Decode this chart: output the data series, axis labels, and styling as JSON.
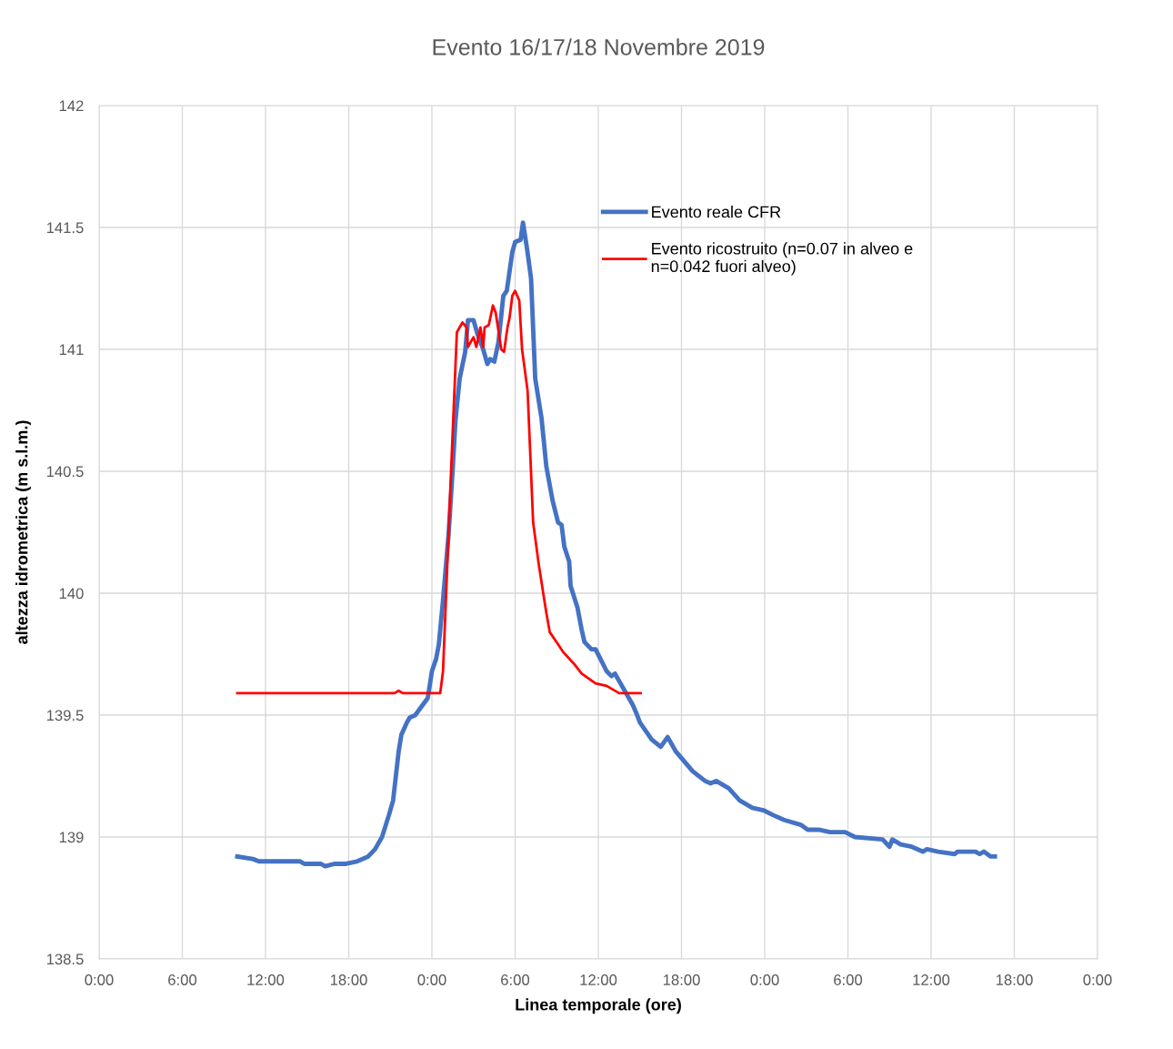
{
  "chart_data": {
    "type": "line",
    "title": "Evento 16/17/18 Novembre 2019",
    "xlabel": "Linea temporale (ore)",
    "ylabel": "altezza idrometrica (m s.l.m.)",
    "xlim": [
      "2019-11-16T00:00",
      "2019-11-19T00:00"
    ],
    "xticks": [
      {
        "value": "2019-11-16T00:00",
        "label": "0:00"
      },
      {
        "value": "2019-11-16T06:00",
        "label": "6:00"
      },
      {
        "value": "2019-11-16T12:00",
        "label": "12:00"
      },
      {
        "value": "2019-11-16T18:00",
        "label": "18:00"
      },
      {
        "value": "2019-11-17T00:00",
        "label": "0:00"
      },
      {
        "value": "2019-11-17T06:00",
        "label": "6:00"
      },
      {
        "value": "2019-11-17T12:00",
        "label": "12:00"
      },
      {
        "value": "2019-11-17T18:00",
        "label": "18:00"
      },
      {
        "value": "2019-11-18T00:00",
        "label": "0:00"
      },
      {
        "value": "2019-11-18T06:00",
        "label": "6:00"
      },
      {
        "value": "2019-11-18T12:00",
        "label": "12:00"
      },
      {
        "value": "2019-11-18T18:00",
        "label": "18:00"
      },
      {
        "value": "2019-11-19T00:00",
        "label": "0:00"
      }
    ],
    "ylim": [
      138.5,
      142
    ],
    "yticks": [
      138.5,
      139,
      139.5,
      140,
      140.5,
      141,
      141.5,
      142
    ],
    "grid": true,
    "legend": "top right",
    "line_style": "solid",
    "marker": "none",
    "series": [
      {
        "name": "Evento reale CFR",
        "color": "#4472c4",
        "x": [
          "2019-11-16T09:58",
          "2019-11-16T11:05",
          "2019-11-16T11:32",
          "2019-11-16T12:30",
          "2019-11-16T14:30",
          "2019-11-16T14:48",
          "2019-11-16T16:00",
          "2019-11-16T16:18",
          "2019-11-16T17:00",
          "2019-11-16T17:48",
          "2019-11-16T18:36",
          "2019-11-16T19:24",
          "2019-11-16T19:54",
          "2019-11-16T20:24",
          "2019-11-16T20:54",
          "2019-11-16T21:12",
          "2019-11-16T21:36",
          "2019-11-16T21:48",
          "2019-11-16T22:12",
          "2019-11-16T22:24",
          "2019-11-16T22:48",
          "2019-11-16T23:42",
          "2019-11-17T00:00",
          "2019-11-17T00:18",
          "2019-11-17T00:30",
          "2019-11-17T00:48",
          "2019-11-17T01:12",
          "2019-11-17T01:30",
          "2019-11-17T01:42",
          "2019-11-17T02:00",
          "2019-11-17T02:24",
          "2019-11-17T02:36",
          "2019-11-17T03:00",
          "2019-11-17T03:18",
          "2019-11-17T03:42",
          "2019-11-17T04:00",
          "2019-11-17T04:12",
          "2019-11-17T04:30",
          "2019-11-17T04:48",
          "2019-11-17T05:09",
          "2019-11-17T05:24",
          "2019-11-17T05:48",
          "2019-11-17T06:00",
          "2019-11-17T06:24",
          "2019-11-17T06:34",
          "2019-11-17T06:52",
          "2019-11-17T07:09",
          "2019-11-17T07:27",
          "2019-11-17T07:54",
          "2019-11-17T08:15",
          "2019-11-17T08:42",
          "2019-11-17T09:06",
          "2019-11-17T09:21",
          "2019-11-17T09:33",
          "2019-11-17T09:54",
          "2019-11-17T10:00",
          "2019-11-17T10:30",
          "2019-11-17T10:48",
          "2019-11-17T11:00",
          "2019-11-17T11:30",
          "2019-11-17T11:48",
          "2019-11-17T12:15",
          "2019-11-17T12:36",
          "2019-11-17T12:57",
          "2019-11-17T13:12",
          "2019-11-17T13:36",
          "2019-11-17T14:00",
          "2019-11-17T14:30",
          "2019-11-17T14:48",
          "2019-11-17T15:00",
          "2019-11-17T15:51",
          "2019-11-17T16:30",
          "2019-11-17T17:00",
          "2019-11-17T17:36",
          "2019-11-17T18:12",
          "2019-11-17T18:48",
          "2019-11-17T19:42",
          "2019-11-17T20:06",
          "2019-11-17T20:30",
          "2019-11-17T21:24",
          "2019-11-17T22:12",
          "2019-11-17T23:06",
          "2019-11-17T23:54",
          "2019-11-18T00:36",
          "2019-11-18T01:24",
          "2019-11-18T02:36",
          "2019-11-18T03:06",
          "2019-11-18T03:54",
          "2019-11-18T04:42",
          "2019-11-18T05:48",
          "2019-11-18T06:30",
          "2019-11-18T08:30",
          "2019-11-18T09:00",
          "2019-11-18T09:12",
          "2019-11-18T09:48",
          "2019-11-18T10:36",
          "2019-11-18T11:24",
          "2019-11-18T11:42",
          "2019-11-18T12:30",
          "2019-11-18T13:42",
          "2019-11-18T13:54",
          "2019-11-18T15:12",
          "2019-11-18T15:30",
          "2019-11-18T15:48",
          "2019-11-18T16:18",
          "2019-11-18T16:36"
        ],
        "values": [
          138.92,
          138.91,
          138.9,
          138.9,
          138.9,
          138.89,
          138.89,
          138.88,
          138.89,
          138.89,
          138.9,
          138.92,
          138.95,
          139.0,
          139.09,
          139.15,
          139.35,
          139.42,
          139.47,
          139.49,
          139.5,
          139.57,
          139.68,
          139.73,
          139.79,
          139.97,
          140.24,
          140.51,
          140.71,
          140.88,
          140.99,
          141.12,
          141.12,
          141.06,
          141.0,
          140.94,
          140.96,
          140.95,
          141.03,
          141.22,
          141.24,
          141.4,
          141.44,
          141.45,
          141.52,
          141.41,
          141.29,
          140.88,
          140.72,
          140.52,
          140.38,
          140.29,
          140.28,
          140.19,
          140.13,
          140.03,
          139.94,
          139.85,
          139.8,
          139.77,
          139.77,
          139.72,
          139.68,
          139.66,
          139.67,
          139.63,
          139.59,
          139.54,
          139.5,
          139.47,
          139.4,
          139.37,
          139.41,
          139.35,
          139.31,
          139.27,
          139.23,
          139.22,
          139.23,
          139.2,
          139.15,
          139.12,
          139.11,
          139.09,
          139.07,
          139.05,
          139.03,
          139.03,
          139.02,
          139.02,
          139.0,
          138.99,
          138.96,
          138.99,
          138.97,
          138.96,
          138.94,
          138.95,
          138.94,
          138.93,
          138.94,
          138.94,
          138.93,
          138.94,
          138.92,
          138.92
        ]
      },
      {
        "name": "Evento ricostruito (n=0.07 in alveo e\nn=0.042 fuori alveo)",
        "color": "#ff0000",
        "x": [
          "2019-11-16T09:58",
          "2019-11-16T21:18",
          "2019-11-16T21:36",
          "2019-11-16T21:54",
          "2019-11-17T00:36",
          "2019-11-17T00:48",
          "2019-11-17T01:22",
          "2019-11-17T01:48",
          "2019-11-17T02:12",
          "2019-11-17T02:30",
          "2019-11-17T02:36",
          "2019-11-17T03:00",
          "2019-11-17T03:12",
          "2019-11-17T03:30",
          "2019-11-17T03:42",
          "2019-11-17T03:48",
          "2019-11-17T04:06",
          "2019-11-17T04:24",
          "2019-11-17T04:36",
          "2019-11-17T05:00",
          "2019-11-17T05:12",
          "2019-11-17T05:27",
          "2019-11-17T05:36",
          "2019-11-17T05:48",
          "2019-11-17T06:00",
          "2019-11-17T06:18",
          "2019-11-17T06:30",
          "2019-11-17T06:54",
          "2019-11-17T07:06",
          "2019-11-17T07:18",
          "2019-11-17T07:42",
          "2019-11-17T08:00",
          "2019-11-17T08:15",
          "2019-11-17T08:30",
          "2019-11-17T09:06",
          "2019-11-17T09:27",
          "2019-11-17T10:15",
          "2019-11-17T10:48",
          "2019-11-17T11:48",
          "2019-11-17T12:36",
          "2019-11-17T13:30",
          "2019-11-17T15:03"
        ],
        "values": [
          139.59,
          139.59,
          139.6,
          139.59,
          139.59,
          139.68,
          140.48,
          141.07,
          141.11,
          141.09,
          141.01,
          141.05,
          141.01,
          141.09,
          141.01,
          141.09,
          141.1,
          141.18,
          141.15,
          141.0,
          140.99,
          141.09,
          141.13,
          141.22,
          141.24,
          141.2,
          141.0,
          140.83,
          140.56,
          140.29,
          140.12,
          140.01,
          139.92,
          139.84,
          139.79,
          139.76,
          139.71,
          139.67,
          139.63,
          139.62,
          139.59,
          139.59
        ]
      }
    ]
  }
}
